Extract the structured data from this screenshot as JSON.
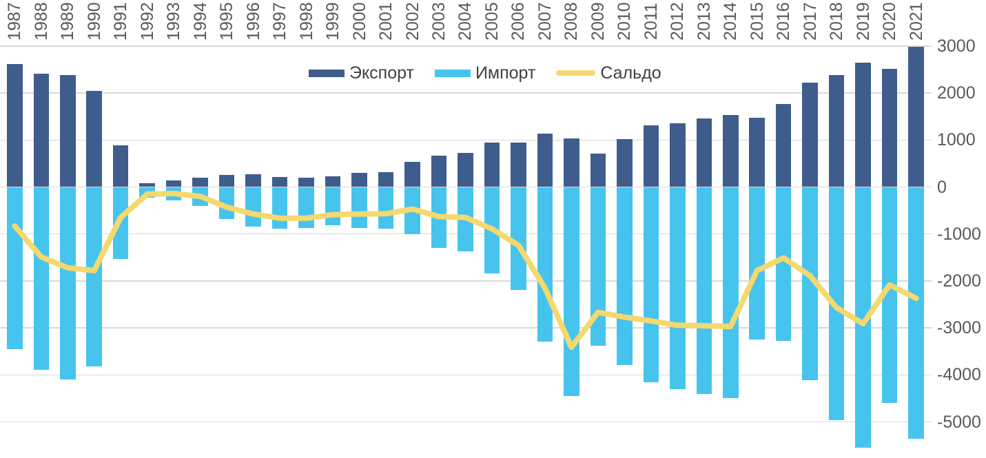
{
  "chart_data": {
    "type": "bar",
    "subtype": "combo-bar-line",
    "title": "",
    "categories": [
      "1987",
      "1988",
      "1989",
      "1990",
      "1991",
      "1992",
      "1993",
      "1994",
      "1995",
      "1996",
      "1997",
      "1998",
      "1999",
      "2000",
      "2001",
      "2002",
      "2003",
      "2004",
      "2005",
      "2006",
      "2007",
      "2008",
      "2009",
      "2010",
      "2011",
      "2012",
      "2013",
      "2014",
      "2015",
      "2016",
      "2017",
      "2018",
      "2019",
      "2020",
      "2021"
    ],
    "series": [
      {
        "name": "Экспорт",
        "type": "bar",
        "color": "#3f5d8c",
        "values": [
          2620,
          2410,
          2380,
          2040,
          880,
          80,
          140,
          200,
          250,
          275,
          215,
          205,
          220,
          295,
          320,
          530,
          670,
          720,
          950,
          950,
          1140,
          1040,
          710,
          1020,
          1310,
          1355,
          1455,
          1530,
          1470,
          1770,
          2220,
          2390,
          2640,
          2515,
          2990
        ]
      },
      {
        "name": "Импорт",
        "type": "bar",
        "color": "#46c4ee",
        "values": [
          -3450,
          -3900,
          -4100,
          -3820,
          -1530,
          -230,
          -280,
          -400,
          -680,
          -850,
          -880,
          -870,
          -810,
          -870,
          -890,
          -1000,
          -1300,
          -1370,
          -1840,
          -2190,
          -3290,
          -4450,
          -3380,
          -3790,
          -4160,
          -4300,
          -4410,
          -4500,
          -3250,
          -3280,
          -4110,
          -4960,
          -5550,
          -4600,
          -5360
        ]
      },
      {
        "name": "Сальдо",
        "type": "line",
        "color": "#f5d86e",
        "values": [
          -830,
          -1490,
          -1720,
          -1780,
          -650,
          -150,
          -140,
          -200,
          -430,
          -575,
          -665,
          -665,
          -590,
          -575,
          -570,
          -470,
          -630,
          -650,
          -890,
          -1240,
          -2150,
          -3410,
          -2670,
          -2770,
          -2850,
          -2945,
          -2955,
          -2970,
          -1780,
          -1510,
          -1890,
          -2570,
          -2910,
          -2085,
          -2370
        ]
      }
    ],
    "y_axis": {
      "side": "right",
      "ticks": [
        3000,
        2000,
        1000,
        0,
        -1000,
        -2000,
        -3000,
        -4000,
        -5000
      ],
      "range_top": 3000,
      "range_bottom": -5780,
      "tick_color": "#595959"
    },
    "x_axis": {
      "position": "top",
      "label_rotation": -90,
      "tick_color": "#595959"
    },
    "grid": true,
    "gridline_color": "#d9d9d9",
    "legend_position": "top-center",
    "legend_text_color": "#404040",
    "background": "#ffffff"
  }
}
